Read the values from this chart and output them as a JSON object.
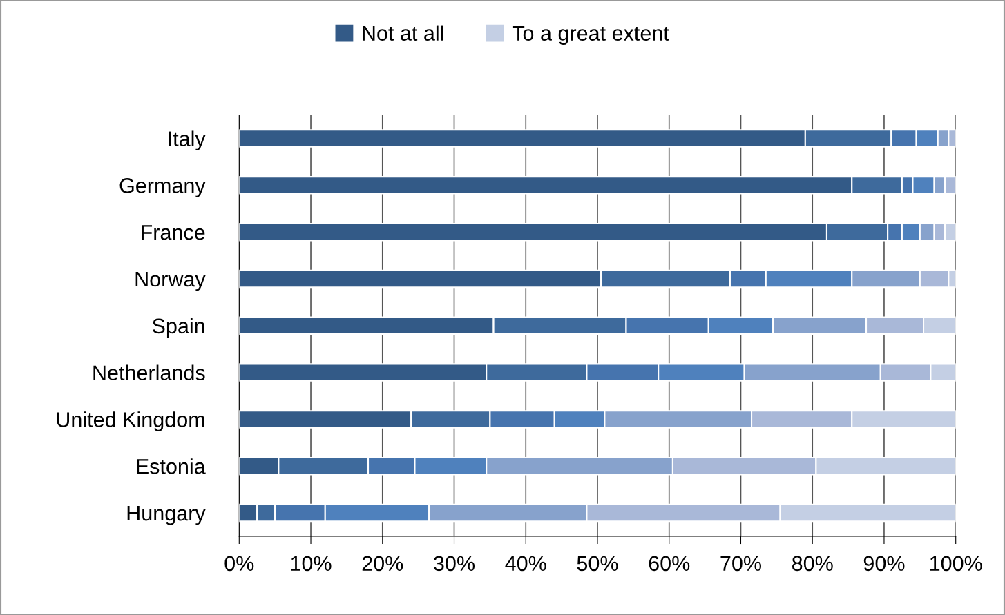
{
  "chart_data": {
    "type": "bar",
    "orientation": "horizontal",
    "stacked": true,
    "legend": "top",
    "grid": "x",
    "categories": [
      "Italy",
      "Germany",
      "France",
      "Norway",
      "Spain",
      "Netherlands",
      "United Kingdom",
      "Estonia",
      "Hungary"
    ],
    "xlim": [
      0,
      100
    ],
    "xticks": [
      {
        "value": 0,
        "label": "0%"
      },
      {
        "value": 10,
        "label": "10%"
      },
      {
        "value": 20,
        "label": "20%"
      },
      {
        "value": 30,
        "label": "30%"
      },
      {
        "value": 40,
        "label": "40%"
      },
      {
        "value": 50,
        "label": "50%"
      },
      {
        "value": 60,
        "label": "60%"
      },
      {
        "value": 70,
        "label": "70%"
      },
      {
        "value": 80,
        "label": "80%"
      },
      {
        "value": 90,
        "label": "90%"
      },
      {
        "value": 100,
        "label": "100%"
      }
    ],
    "series": [
      {
        "name": "Not at all",
        "color": "#335a87",
        "values": [
          79,
          85.5,
          82,
          50.5,
          35.5,
          34.5,
          24,
          5.5,
          2.5
        ]
      },
      {
        "color": "#3e6a9c",
        "values": [
          12,
          7,
          8.5,
          18,
          18.5,
          14,
          11,
          12.5,
          2.5
        ]
      },
      {
        "color": "#4674ae",
        "values": [
          3.5,
          1.5,
          2,
          5,
          11.5,
          10,
          9,
          6.5,
          7
        ]
      },
      {
        "color": "#4f81bd",
        "values": [
          3,
          3,
          2.5,
          12,
          9,
          12,
          7,
          10,
          14.5
        ]
      },
      {
        "color": "#87a2cc",
        "values": [
          1.5,
          1.5,
          2,
          9.5,
          13,
          19,
          20.5,
          26,
          22
        ]
      },
      {
        "color": "#a9b8d8",
        "values": [
          1,
          1.5,
          1.5,
          4,
          8,
          7,
          14,
          20,
          27
        ]
      },
      {
        "name": "To a great extent",
        "color": "#c4cfe4",
        "values": [
          0,
          0,
          1.5,
          1,
          4.5,
          3.5,
          14.5,
          19.5,
          24.5
        ]
      }
    ]
  }
}
